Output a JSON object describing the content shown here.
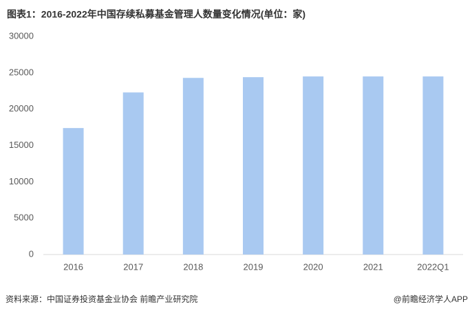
{
  "chart_data": {
    "type": "bar",
    "title": "图表1：2016-2022年中国存续私募基金管理人数量变化情况(单位：家)",
    "categories": [
      "2016",
      "2017",
      "2018",
      "2019",
      "2020",
      "2021",
      "2022Q1"
    ],
    "values": [
      17400,
      22300,
      24300,
      24400,
      24500,
      24500,
      24500
    ],
    "color": "#a9c9f1",
    "ylim": [
      0,
      30000
    ],
    "yticks": [
      0,
      5000,
      10000,
      15000,
      20000,
      25000,
      30000
    ],
    "grid": false,
    "source": "资料来源：中国证券投资基金业协会 前瞻产业研究院",
    "credit": "@前瞻经济学人APP"
  }
}
